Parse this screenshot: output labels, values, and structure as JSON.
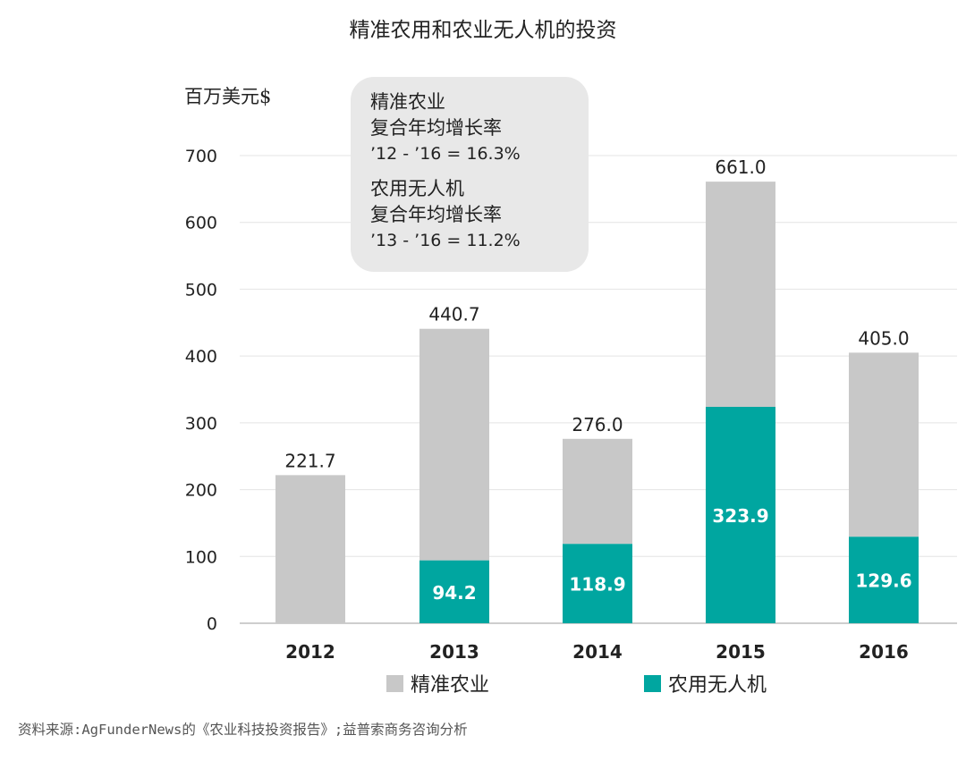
{
  "chart_data": {
    "type": "bar",
    "stacked": true,
    "title": "精准农用和农业无人机的投资",
    "ylabel": "百万美元$",
    "xlabel": "",
    "ylim": [
      0,
      700
    ],
    "yticks": [
      0,
      100,
      200,
      300,
      400,
      500,
      600,
      700
    ],
    "grid": true,
    "legend_position": "bottom",
    "categories": [
      "2012",
      "2013",
      "2014",
      "2015",
      "2016"
    ],
    "totals": [
      221.7,
      440.7,
      276.0,
      661.0,
      405.0
    ],
    "total_labels": [
      "221.7",
      "440.7",
      "276.0",
      "661.0",
      "405.0"
    ],
    "series": [
      {
        "name": "农用无人机",
        "color": "#00a6a0",
        "values": [
          0,
          94.2,
          118.9,
          323.9,
          129.6
        ],
        "labels": [
          "",
          "94.2",
          "118.9",
          "323.9",
          "129.6"
        ]
      },
      {
        "name": "精准农业",
        "color": "#c8c8c8",
        "values": [
          221.7,
          346.5,
          157.1,
          337.1,
          275.4
        ]
      }
    ],
    "annotation": {
      "lines_a": [
        "精准农业",
        "复合年均增长率",
        "’12 - ’16 = 16.3%"
      ],
      "lines_b": [
        "农用无人机",
        "复合年均增长率",
        "’13 - ’16 = 11.2%"
      ]
    }
  },
  "legend": {
    "items": [
      {
        "label": "精准农业",
        "color": "#c8c8c8"
      },
      {
        "label": "农用无人机",
        "color": "#00a6a0"
      }
    ]
  },
  "source": "资料来源:AgFunderNews的《农业科技投资报告》;益普索商务咨询分析"
}
